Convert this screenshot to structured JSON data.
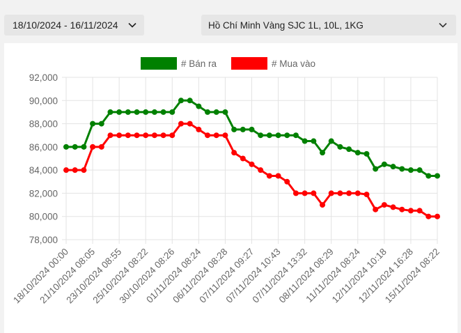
{
  "filters": {
    "date_range": "18/10/2024 - 16/11/2024",
    "location_product": "Hồ Chí Minh Vàng SJC 1L, 10L, 1KG",
    "dropdown_icon": "chevron-down-icon"
  },
  "chart_data": {
    "type": "line",
    "title": "",
    "xlabel": "",
    "ylabel": "",
    "legend_position": "top",
    "grid": true,
    "ylim": [
      78000,
      92000
    ],
    "y_ticks": [
      "78,000",
      "80,000",
      "82,000",
      "84,000",
      "86,000",
      "88,000",
      "90,000",
      "92,000"
    ],
    "y_tick_values": [
      78000,
      80000,
      82000,
      84000,
      86000,
      88000,
      90000,
      92000
    ],
    "x_tick_labels": [
      {
        "index": 0,
        "label": "18/10/2024 00:00"
      },
      {
        "index": 3,
        "label": "21/10/2024 08:05"
      },
      {
        "index": 6,
        "label": "23/10/2024 08:55"
      },
      {
        "index": 9,
        "label": "25/10/2024 08:22"
      },
      {
        "index": 12,
        "label": "30/10/2024 08:26"
      },
      {
        "index": 15,
        "label": "01/11/2024 08:24"
      },
      {
        "index": 18,
        "label": "06/11/2024 08:28"
      },
      {
        "index": 21,
        "label": "07/11/2024 09:27"
      },
      {
        "index": 24,
        "label": "07/11/2024 10:43"
      },
      {
        "index": 27,
        "label": "07/11/2024 13:32"
      },
      {
        "index": 30,
        "label": "08/11/2024 08:29"
      },
      {
        "index": 33,
        "label": "11/11/2024 08:24"
      },
      {
        "index": 36,
        "label": "12/11/2024 10:18"
      },
      {
        "index": 39,
        "label": "12/11/2024 16:28"
      },
      {
        "index": 42,
        "label": "15/11/2024 08:22"
      }
    ],
    "series": [
      {
        "name": "# Bán ra",
        "color": "#008000",
        "values": [
          86000,
          86000,
          86000,
          88000,
          88000,
          89000,
          89000,
          89000,
          89000,
          89000,
          89000,
          89000,
          89000,
          90000,
          90000,
          89500,
          89000,
          89000,
          89000,
          87500,
          87500,
          87500,
          87000,
          87000,
          87000,
          87000,
          87000,
          86500,
          86500,
          85500,
          86500,
          86000,
          85800,
          85500,
          85400,
          84100,
          84500,
          84300,
          84100,
          84000,
          84000,
          83500,
          83500
        ]
      },
      {
        "name": "# Mua vào",
        "color": "#ff0000",
        "values": [
          84000,
          84000,
          84000,
          86000,
          86000,
          87000,
          87000,
          87000,
          87000,
          87000,
          87000,
          87000,
          87000,
          88000,
          88000,
          87500,
          87000,
          87000,
          87000,
          85500,
          85000,
          84500,
          84000,
          83500,
          83500,
          83000,
          82000,
          82000,
          82000,
          81000,
          82000,
          82000,
          82000,
          82000,
          81900,
          80600,
          81000,
          80800,
          80600,
          80500,
          80500,
          80000,
          80000
        ]
      }
    ]
  }
}
